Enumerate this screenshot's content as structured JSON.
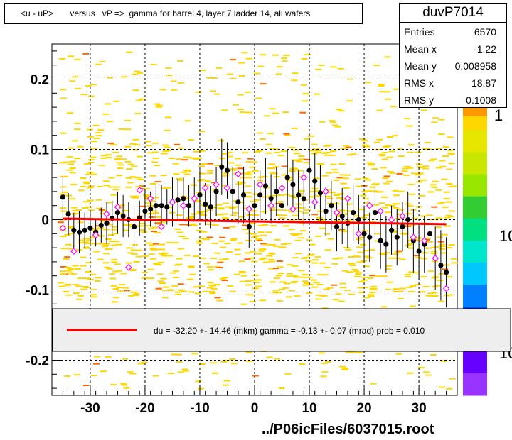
{
  "title": "<u - uP>       versus   vP =>  gamma for barrel 4, layer 7 ladder 14, all wafers",
  "stats": {
    "name": "duvP7014",
    "rows": [
      {
        "key": "Entries",
        "value": "6570"
      },
      {
        "key": "Mean x",
        "value": "-1.22"
      },
      {
        "key": "Mean y",
        "value": "0.008958"
      },
      {
        "key": "RMS x",
        "value": "18.87"
      },
      {
        "key": "RMS y",
        "value": "0.1008"
      }
    ]
  },
  "legend_text": "du =  -32.20 +- 14.46 (mkm) gamma =   -0.13 +-  0.07 (mrad) prob = 0.010",
  "footer": "../P06icFiles/6037015.root",
  "palette_labels": [
    "1",
    "10",
    "10"
  ],
  "colors": {
    "fit_line": "#ff0000",
    "points": "#000000",
    "open_markers": "#ff00ff",
    "density_low": "#ffd700",
    "density_mid": "#ff6600",
    "legend_bg": "#eeeeee"
  },
  "chart_data": {
    "type": "scatter",
    "xlim": [
      -37,
      37
    ],
    "ylim": [
      -0.25,
      0.25
    ],
    "x_ticks": [
      -30,
      -20,
      -10,
      0,
      10,
      20,
      30
    ],
    "y_ticks": [
      -0.2,
      -0.1,
      0,
      0.1,
      0.2
    ],
    "x_tick_labels": [
      "-30",
      "-20",
      "-10",
      "0",
      "10",
      "20",
      "30"
    ],
    "y_tick_labels": [
      "-0.2",
      "-0.1",
      "0",
      "0.1",
      "0.2"
    ],
    "grid": true,
    "fit_line": {
      "x": [
        -35,
        35
      ],
      "y": [
        0.0015,
        -0.0065
      ]
    },
    "profile_points": {
      "x": [
        -35,
        -34,
        -33,
        -32,
        -31,
        -30,
        -29,
        -28,
        -27,
        -26,
        -25,
        -24,
        -23,
        -22,
        -21,
        -20,
        -19,
        -18,
        -17,
        -16,
        -15,
        -14,
        -13,
        -12,
        -11,
        -10,
        -9,
        -8,
        -7,
        -6,
        -5,
        -4,
        -3,
        -2,
        -1,
        0,
        1,
        2,
        3,
        4,
        5,
        6,
        7,
        8,
        9,
        10,
        11,
        12,
        13,
        14,
        15,
        16,
        17,
        18,
        19,
        20,
        21,
        22,
        23,
        24,
        25,
        26,
        27,
        28,
        29,
        30,
        31,
        32,
        33,
        34,
        35
      ],
      "y": [
        0.032,
        0.008,
        -0.015,
        -0.018,
        -0.015,
        -0.012,
        -0.018,
        -0.008,
        -0.005,
        0.002,
        0.01,
        0.005,
        0.0,
        -0.01,
        0.002,
        0.012,
        0.015,
        0.02,
        0.02,
        0.018,
        0.025,
        0.028,
        0.03,
        0.02,
        0.03,
        0.035,
        0.022,
        0.018,
        0.04,
        0.075,
        0.07,
        0.04,
        0.025,
        0.035,
        -0.01,
        0.02,
        0.035,
        0.048,
        0.03,
        0.04,
        0.02,
        0.06,
        0.05,
        0.035,
        0.03,
        0.07,
        0.055,
        0.038,
        0.012,
        0.02,
        -0.01,
        0.005,
        -0.005,
        0.01,
        0.0,
        -0.02,
        -0.025,
        0.01,
        -0.03,
        -0.035,
        -0.015,
        -0.025,
        -0.01,
        0.0,
        -0.03,
        -0.045,
        -0.035,
        -0.02,
        -0.055,
        -0.065,
        -0.075
      ],
      "err": [
        0.03,
        0.03,
        0.025,
        0.03,
        0.025,
        0.025,
        0.02,
        0.025,
        0.03,
        0.025,
        0.03,
        0.03,
        0.025,
        0.03,
        0.025,
        0.03,
        0.025,
        0.03,
        0.03,
        0.025,
        0.035,
        0.03,
        0.03,
        0.03,
        0.03,
        0.035,
        0.03,
        0.03,
        0.035,
        0.04,
        0.04,
        0.035,
        0.03,
        0.04,
        0.03,
        0.035,
        0.035,
        0.04,
        0.035,
        0.035,
        0.04,
        0.04,
        0.035,
        0.035,
        0.04,
        0.045,
        0.04,
        0.04,
        0.035,
        0.035,
        0.035,
        0.04,
        0.035,
        0.04,
        0.035,
        0.04,
        0.035,
        0.04,
        0.04,
        0.04,
        0.035,
        0.04,
        0.035,
        0.04,
        0.045,
        0.04,
        0.04,
        0.04,
        0.045,
        0.05,
        0.05
      ]
    },
    "open_markers": {
      "x": [
        -35,
        -33,
        -29,
        -27,
        -25,
        -23,
        -21,
        -19,
        -17,
        -15,
        -13,
        -11,
        -9,
        -7,
        -5,
        -3,
        -1,
        1,
        3,
        5,
        7,
        9,
        11,
        13,
        15,
        17,
        19,
        21,
        23,
        25,
        27,
        29,
        31,
        33,
        35
      ],
      "y": [
        -0.012,
        -0.045,
        -0.022,
        0.008,
        0.018,
        -0.068,
        0.042,
        0.03,
        -0.01,
        0.025,
        0.02,
        0.03,
        0.045,
        0.05,
        0.045,
        0.065,
        0.015,
        0.05,
        0.02,
        0.045,
        0.015,
        0.06,
        0.025,
        0.04,
        0.01,
        0.03,
        -0.02,
        0.02,
        0.012,
        0.0,
        0.005,
        -0.025,
        -0.03,
        -0.055,
        -0.098
      ]
    }
  }
}
